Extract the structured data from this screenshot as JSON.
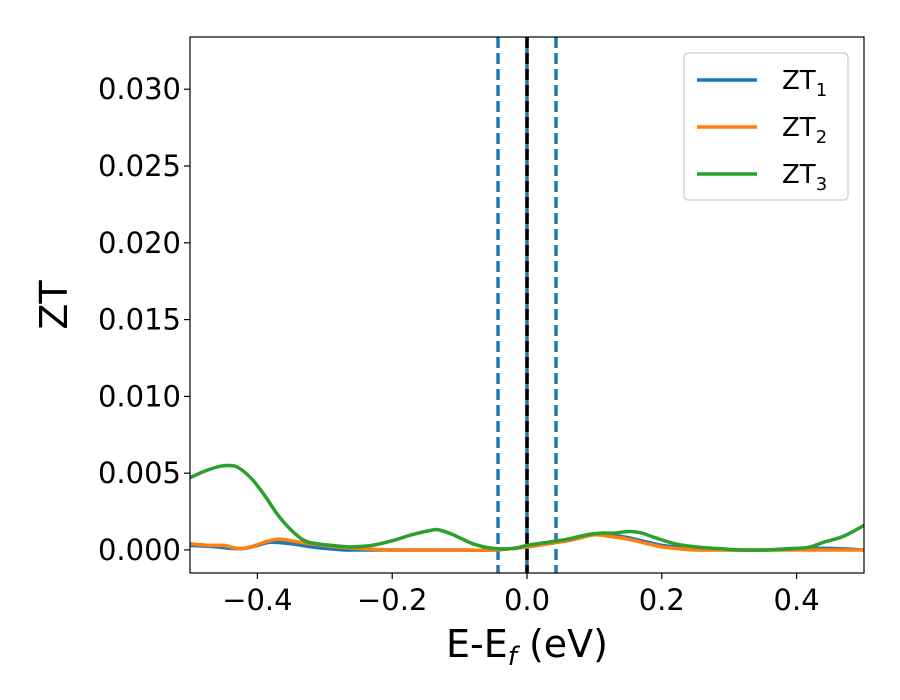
{
  "chart_data": {
    "type": "line",
    "xlabel_main": "E-E",
    "xlabel_sub": "f",
    "xlabel_unit": " (eV)",
    "ylabel": "ZT",
    "xlim": [
      -0.5,
      0.5
    ],
    "ylim": [
      -0.0015,
      0.0334
    ],
    "x_ticks": [
      -0.4,
      -0.2,
      0.0,
      0.2,
      0.4
    ],
    "x_tick_labels": [
      "−0.4",
      "−0.2",
      "0.0",
      "0.2",
      "0.4"
    ],
    "y_ticks": [
      0.0,
      0.005,
      0.01,
      0.015,
      0.02,
      0.025,
      0.03
    ],
    "y_tick_labels": [
      "0.000",
      "0.005",
      "0.010",
      "0.015",
      "0.020",
      "0.025",
      "0.030"
    ],
    "grid": false,
    "legend_position": "top-right",
    "vertical_lines": [
      {
        "x": -0.043,
        "style": "dashed",
        "color": "#1f77b4"
      },
      {
        "x": 0.0,
        "style": "solid",
        "color": "#1f77b4"
      },
      {
        "x": 0.0,
        "style": "dashed",
        "color": "#000000"
      },
      {
        "x": 0.043,
        "style": "dashed",
        "color": "#1f77b4"
      }
    ],
    "series": [
      {
        "name": "ZT",
        "sub": "1",
        "color": "#1f77b4",
        "x": [
          -0.5,
          -0.46,
          -0.44,
          -0.42,
          -0.4,
          -0.38,
          -0.35,
          -0.32,
          -0.3,
          -0.27,
          -0.25,
          -0.2,
          -0.15,
          -0.1,
          -0.05,
          0.0,
          0.03,
          0.06,
          0.08,
          0.1,
          0.12,
          0.15,
          0.18,
          0.2,
          0.22,
          0.25,
          0.3,
          0.35,
          0.4,
          0.45,
          0.5
        ],
        "y": [
          0.0003,
          0.0002,
          0.0001,
          0.0001,
          0.0003,
          0.0005,
          0.0004,
          0.0002,
          0.0001,
          0.0,
          0.0,
          0.0,
          0.0,
          0.0,
          0.0,
          0.0002,
          0.0004,
          0.0006,
          0.0008,
          0.001,
          0.001,
          0.0008,
          0.0005,
          0.0003,
          0.0002,
          0.0001,
          0.0,
          0.0,
          0.0001,
          0.0001,
          0.0
        ]
      },
      {
        "name": "ZT",
        "sub": "2",
        "color": "#ff7f0e",
        "x": [
          -0.5,
          -0.47,
          -0.45,
          -0.43,
          -0.41,
          -0.39,
          -0.37,
          -0.35,
          -0.32,
          -0.3,
          -0.28,
          -0.25,
          -0.2,
          -0.15,
          -0.1,
          -0.05,
          0.0,
          0.03,
          0.06,
          0.08,
          0.1,
          0.12,
          0.15,
          0.18,
          0.2,
          0.22,
          0.25,
          0.3,
          0.35,
          0.4,
          0.45,
          0.5
        ],
        "y": [
          0.0004,
          0.0003,
          0.0003,
          0.0001,
          0.0002,
          0.0005,
          0.0007,
          0.0006,
          0.0004,
          0.0003,
          0.0002,
          0.0001,
          0.0,
          0.0,
          0.0,
          0.0,
          0.0002,
          0.0004,
          0.0006,
          0.0008,
          0.001,
          0.0009,
          0.0007,
          0.0004,
          0.0002,
          0.0001,
          0.0,
          0.0,
          0.0,
          0.0,
          0.0,
          0.0
        ]
      },
      {
        "name": "ZT",
        "sub": "3",
        "color": "#2ca02c",
        "x": [
          -0.5,
          -0.48,
          -0.46,
          -0.445,
          -0.43,
          -0.41,
          -0.39,
          -0.37,
          -0.35,
          -0.33,
          -0.31,
          -0.29,
          -0.26,
          -0.23,
          -0.2,
          -0.17,
          -0.14,
          -0.13,
          -0.11,
          -0.08,
          -0.05,
          -0.02,
          0.0,
          0.03,
          0.06,
          0.09,
          0.11,
          0.13,
          0.15,
          0.17,
          0.19,
          0.22,
          0.25,
          0.28,
          0.32,
          0.36,
          0.4,
          0.42,
          0.44,
          0.47,
          0.5
        ],
        "y": [
          0.0047,
          0.0051,
          0.0054,
          0.0055,
          0.0054,
          0.0047,
          0.0036,
          0.0023,
          0.0013,
          0.0006,
          0.0004,
          0.0003,
          0.0002,
          0.0003,
          0.0006,
          0.001,
          0.0013,
          0.0013,
          0.001,
          0.0004,
          0.0001,
          0.0001,
          0.0003,
          0.0005,
          0.0007,
          0.001,
          0.0011,
          0.0011,
          0.0012,
          0.0011,
          0.0008,
          0.0004,
          0.0002,
          0.0001,
          0.0,
          0.0,
          0.0001,
          0.0002,
          0.0005,
          0.0009,
          0.0016
        ]
      }
    ]
  }
}
